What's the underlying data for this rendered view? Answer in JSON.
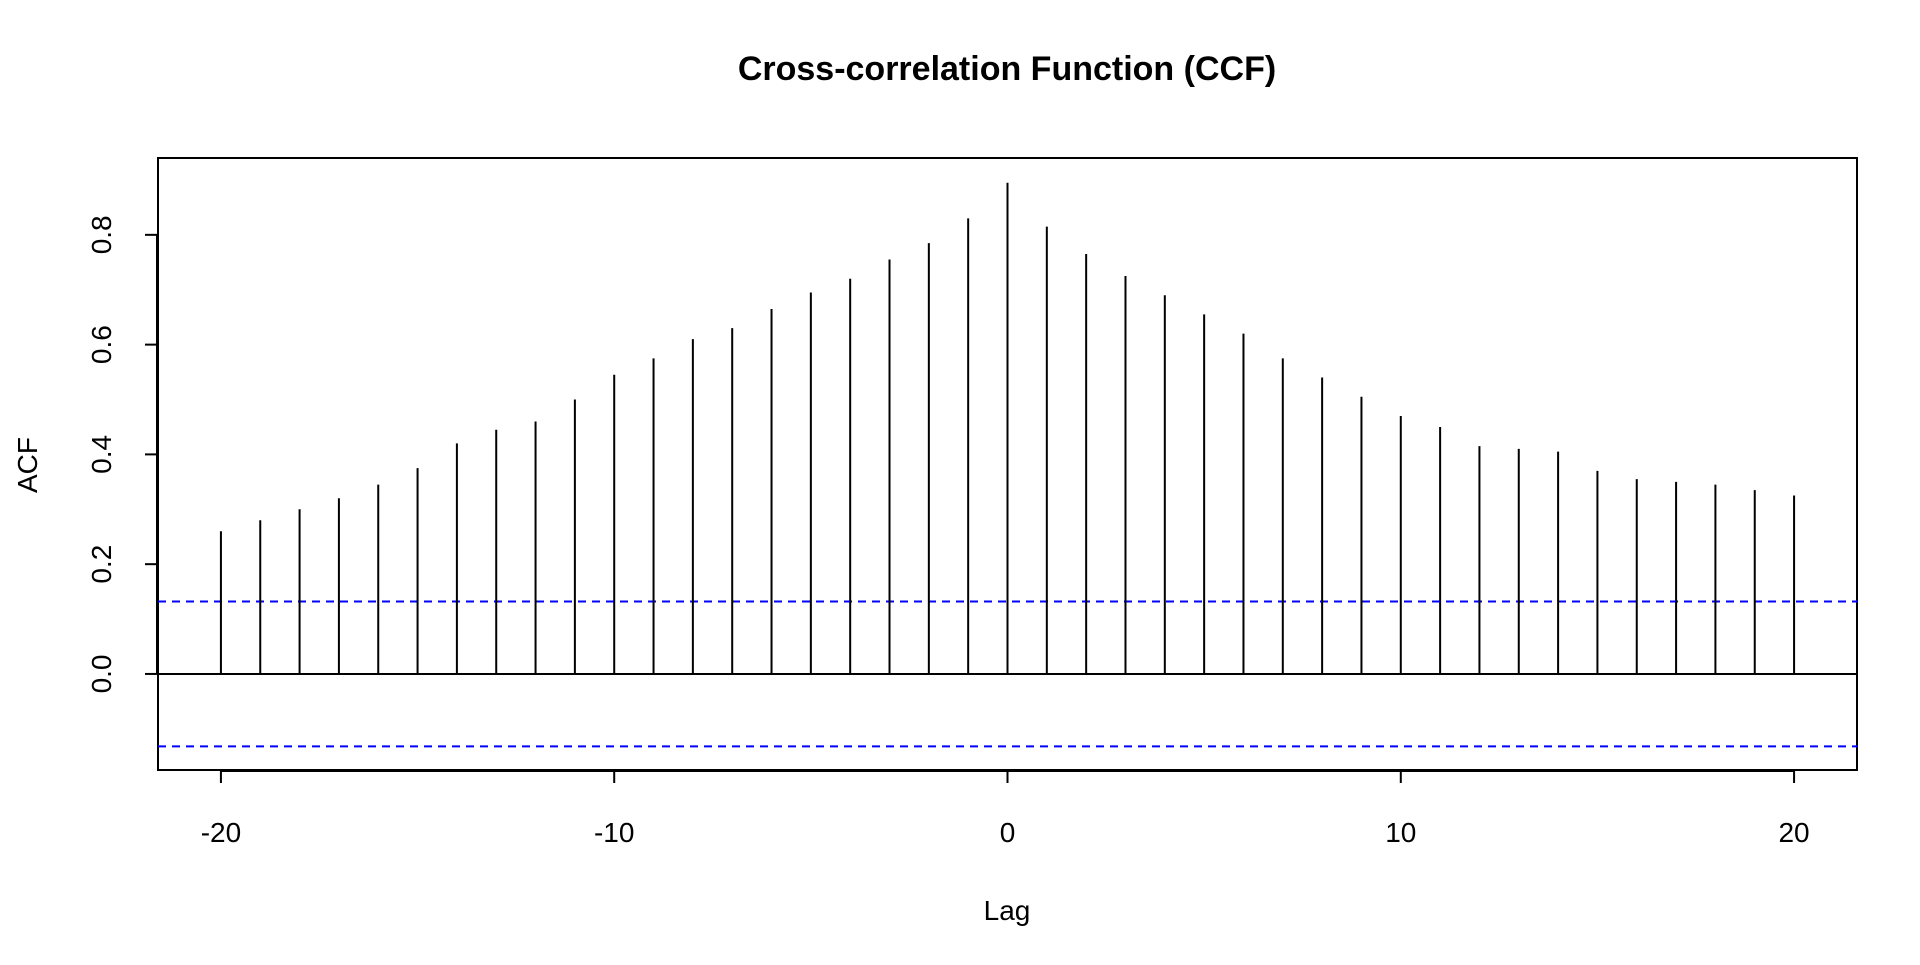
{
  "chart_data": {
    "type": "bar",
    "title": "Cross-correlation Function (CCF)",
    "xlabel": "Lag",
    "ylabel": "ACF",
    "xlim": [
      -21.6,
      21.6
    ],
    "ylim": [
      -0.175,
      0.94
    ],
    "x_ticks": [
      -20,
      -10,
      0,
      10,
      20
    ],
    "x_tick_labels": [
      "-20",
      "-10",
      "0",
      "10",
      "20"
    ],
    "y_ticks": [
      0.0,
      0.2,
      0.4,
      0.6,
      0.8
    ],
    "y_tick_labels": [
      "0.0",
      "0.2",
      "0.4",
      "0.6",
      "0.8"
    ],
    "confidence_bounds": [
      0.132,
      -0.132
    ],
    "grid": false,
    "series": [
      {
        "x": [
          -20,
          -19,
          -18,
          -17,
          -16,
          -15,
          -14,
          -13,
          -12,
          -11,
          -10,
          -9,
          -8,
          -7,
          -6,
          -5,
          -4,
          -3,
          -2,
          -1,
          0,
          1,
          2,
          3,
          4,
          5,
          6,
          7,
          8,
          9,
          10,
          11,
          12,
          13,
          14,
          15,
          16,
          17,
          18,
          19,
          20
        ],
        "values": [
          0.26,
          0.28,
          0.3,
          0.32,
          0.345,
          0.375,
          0.42,
          0.445,
          0.46,
          0.5,
          0.545,
          0.575,
          0.61,
          0.63,
          0.665,
          0.695,
          0.72,
          0.755,
          0.785,
          0.83,
          0.895,
          0.815,
          0.765,
          0.725,
          0.69,
          0.655,
          0.62,
          0.575,
          0.54,
          0.505,
          0.47,
          0.45,
          0.415,
          0.41,
          0.405,
          0.37,
          0.355,
          0.35,
          0.345,
          0.335,
          0.325
        ]
      }
    ]
  },
  "colors": {
    "bars": "#000000",
    "confidence_line": "#0000ff",
    "axis": "#000000"
  }
}
